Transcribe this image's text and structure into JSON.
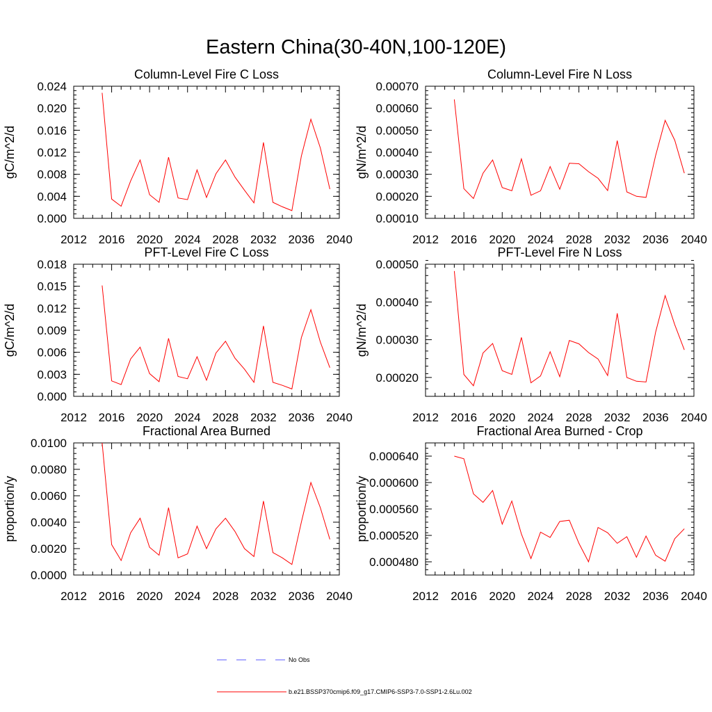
{
  "title": "Eastern China(30-40N,100-120E)",
  "colors": {
    "model_line": "#ff0000",
    "obs_line": "#5a5aff",
    "axis": "#000000"
  },
  "legend": {
    "placement": "bottom-center",
    "items": [
      {
        "label": "No Obs",
        "style": "dashed",
        "color": "#5a5aff"
      },
      {
        "label": "b.e21.BSSP370cmip6.f09_g17.CMIP6-SSP3-7.0-SSP1-2.6Lu.002",
        "style": "solid",
        "color": "#ff0000"
      }
    ]
  },
  "chart_data": [
    {
      "type": "line",
      "title": "Column-Level Fire C Loss",
      "ylabel": "gC/m^2/d",
      "xlim": [
        2012,
        2040
      ],
      "ylim": [
        0.0,
        0.024
      ],
      "xticks": [
        "2012",
        "2016",
        "2020",
        "2024",
        "2028",
        "2032",
        "2036",
        "2040"
      ],
      "yticks": [
        "0.000",
        "0.004",
        "0.008",
        "0.012",
        "0.016",
        "0.020",
        "0.024"
      ],
      "x": [
        2015,
        2016,
        2017,
        2018,
        2019,
        2020,
        2021,
        2022,
        2023,
        2024,
        2025,
        2026,
        2027,
        2028,
        2029,
        2030,
        2031,
        2032,
        2033,
        2034,
        2035,
        2036,
        2037,
        2038,
        2039
      ],
      "series": [
        {
          "values": [
            0.0228,
            0.0035,
            0.0022,
            0.0068,
            0.0106,
            0.0043,
            0.0029,
            0.0111,
            0.0037,
            0.0034,
            0.0088,
            0.0038,
            0.0081,
            0.0106,
            0.0075,
            0.0051,
            0.0028,
            0.0138,
            0.0029,
            0.0021,
            0.0014,
            0.0113,
            0.018,
            0.0128,
            0.0053
          ]
        }
      ]
    },
    {
      "type": "line",
      "title": "Column-Level Fire N Loss",
      "ylabel": "gN/m^2/d",
      "xlim": [
        2012,
        2040
      ],
      "ylim": [
        0.0001,
        0.0007
      ],
      "xticks": [
        "2012",
        "2016",
        "2020",
        "2024",
        "2028",
        "2032",
        "2036",
        "2040"
      ],
      "yticks": [
        "0.00010",
        "0.00020",
        "0.00030",
        "0.00040",
        "0.00050",
        "0.00060",
        "0.00070"
      ],
      "x": [
        2015,
        2016,
        2017,
        2018,
        2019,
        2020,
        2021,
        2022,
        2023,
        2024,
        2025,
        2026,
        2027,
        2028,
        2029,
        2030,
        2031,
        2032,
        2033,
        2034,
        2035,
        2036,
        2037,
        2038,
        2039
      ],
      "series": [
        {
          "values": [
            0.00064,
            0.000235,
            0.00019,
            0.000305,
            0.000365,
            0.00024,
            0.000225,
            0.00037,
            0.000205,
            0.000225,
            0.000335,
            0.000232,
            0.00035,
            0.000348,
            0.000312,
            0.000282,
            0.000226,
            0.000453,
            0.00022,
            0.0002,
            0.000195,
            0.000385,
            0.000545,
            0.000455,
            0.000305
          ]
        }
      ]
    },
    {
      "type": "line",
      "title": "PFT-Level Fire C Loss",
      "ylabel": "gC/m^2/d",
      "xlim": [
        2012,
        2040
      ],
      "ylim": [
        0.0,
        0.018
      ],
      "xticks": [
        "2012",
        "2016",
        "2020",
        "2024",
        "2028",
        "2032",
        "2036",
        "2040"
      ],
      "yticks": [
        "0.000",
        "0.003",
        "0.006",
        "0.009",
        "0.012",
        "0.015",
        "0.018"
      ],
      "x": [
        2015,
        2016,
        2017,
        2018,
        2019,
        2020,
        2021,
        2022,
        2023,
        2024,
        2025,
        2026,
        2027,
        2028,
        2029,
        2030,
        2031,
        2032,
        2033,
        2034,
        2035,
        2036,
        2037,
        2038,
        2039
      ],
      "series": [
        {
          "values": [
            0.0151,
            0.0021,
            0.0016,
            0.0051,
            0.0067,
            0.0031,
            0.002,
            0.0079,
            0.0027,
            0.0024,
            0.0054,
            0.0022,
            0.0059,
            0.0075,
            0.0052,
            0.0037,
            0.0019,
            0.0096,
            0.0019,
            0.0015,
            0.001,
            0.008,
            0.0118,
            0.0074,
            0.0039
          ]
        }
      ]
    },
    {
      "type": "line",
      "title": "PFT-Level Fire N Loss",
      "ylabel": "gN/m^2/d",
      "xlim": [
        2012,
        2040
      ],
      "ylim": [
        0.00015,
        0.0005
      ],
      "xticks": [
        "2012",
        "2016",
        "2020",
        "2024",
        "2028",
        "2032",
        "2036",
        "2040"
      ],
      "yticks": [
        "0.00020",
        "0.00030",
        "0.00040",
        "0.00050"
      ],
      "x": [
        2015,
        2016,
        2017,
        2018,
        2019,
        2020,
        2021,
        2022,
        2023,
        2024,
        2025,
        2026,
        2027,
        2028,
        2029,
        2030,
        2031,
        2032,
        2033,
        2034,
        2035,
        2036,
        2037,
        2038,
        2039
      ],
      "series": [
        {
          "values": [
            0.000482,
            0.000208,
            0.000178,
            0.000265,
            0.00029,
            0.000218,
            0.000208,
            0.000306,
            0.000186,
            0.000204,
            0.000268,
            0.000202,
            0.000298,
            0.000289,
            0.000266,
            0.000249,
            0.000205,
            0.00037,
            0.0002,
            0.00019,
            0.000188,
            0.00032,
            0.000417,
            0.00034,
            0.000273
          ]
        }
      ]
    },
    {
      "type": "line",
      "title": "Fractional Area Burned",
      "ylabel": "proportion/y",
      "xlim": [
        2012,
        2040
      ],
      "ylim": [
        0.0,
        0.01
      ],
      "xticks": [
        "2012",
        "2016",
        "2020",
        "2024",
        "2028",
        "2032",
        "2036",
        "2040"
      ],
      "yticks": [
        "0.0000",
        "0.0020",
        "0.0040",
        "0.0060",
        "0.0080",
        "0.0100"
      ],
      "x": [
        2015,
        2016,
        2017,
        2018,
        2019,
        2020,
        2021,
        2022,
        2023,
        2024,
        2025,
        2026,
        2027,
        2028,
        2029,
        2030,
        2031,
        2032,
        2033,
        2034,
        2035,
        2036,
        2037,
        2038,
        2039
      ],
      "series": [
        {
          "values": [
            0.01,
            0.0023,
            0.0011,
            0.0032,
            0.0043,
            0.0021,
            0.0015,
            0.0051,
            0.0013,
            0.0016,
            0.0037,
            0.002,
            0.0035,
            0.0043,
            0.0033,
            0.002,
            0.0014,
            0.0056,
            0.0017,
            0.0013,
            0.0008,
            0.004,
            0.007,
            0.0051,
            0.0027
          ]
        }
      ]
    },
    {
      "type": "line",
      "title": "Fractional Area Burned - Crop",
      "ylabel": "proportion/y",
      "xlim": [
        2012,
        2040
      ],
      "ylim": [
        0.00046,
        0.00066
      ],
      "xticks": [
        "2012",
        "2016",
        "2020",
        "2024",
        "2028",
        "2032",
        "2036",
        "2040"
      ],
      "yticks": [
        "0.000480",
        "0.000520",
        "0.000560",
        "0.000600",
        "0.000640"
      ],
      "x": [
        2015,
        2016,
        2017,
        2018,
        2019,
        2020,
        2021,
        2022,
        2023,
        2024,
        2025,
        2026,
        2027,
        2028,
        2029,
        2030,
        2031,
        2032,
        2033,
        2034,
        2035,
        2036,
        2037,
        2038,
        2039
      ],
      "series": [
        {
          "values": [
            0.00064,
            0.000636,
            0.000583,
            0.00057,
            0.000588,
            0.000537,
            0.000572,
            0.000522,
            0.000485,
            0.000525,
            0.000517,
            0.000541,
            0.000543,
            0.000508,
            0.00048,
            0.000532,
            0.000524,
            0.000508,
            0.000518,
            0.000487,
            0.000519,
            0.00049,
            0.000481,
            0.000515,
            0.00053
          ]
        }
      ]
    }
  ]
}
